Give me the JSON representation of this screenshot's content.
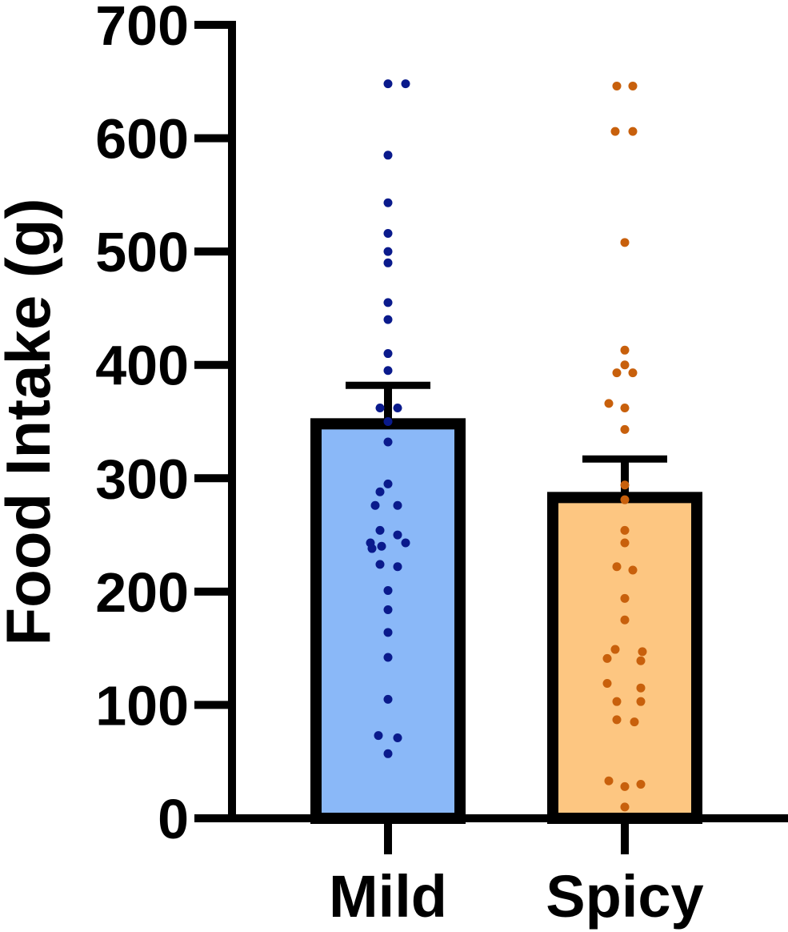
{
  "chart_data": {
    "type": "bar",
    "title": "",
    "xlabel": "",
    "ylabel": "Food Intake (g)",
    "ylim": [
      0,
      700
    ],
    "yticks": [
      0,
      100,
      200,
      300,
      400,
      500,
      600,
      700
    ],
    "categories": [
      "Mild",
      "Spicy"
    ],
    "values": [
      348,
      283
    ],
    "error_upper": [
      382,
      317
    ],
    "colors": {
      "bar_fill": [
        "#8ab8f8",
        "#fdc681"
      ],
      "points": [
        "#0a1a8c",
        "#c8600c"
      ],
      "outline": "#000000"
    },
    "points": [
      [
        648,
        648,
        585,
        543,
        516,
        500,
        490,
        455,
        440,
        410,
        395,
        362,
        362,
        350,
        332,
        295,
        288,
        276,
        276,
        254,
        250,
        243,
        243,
        240,
        238,
        224,
        222,
        201,
        184,
        164,
        142,
        105,
        73,
        71,
        57
      ],
      [
        646,
        646,
        606,
        606,
        508,
        413,
        400,
        393,
        393,
        366,
        362,
        343,
        294,
        281,
        254,
        243,
        222,
        219,
        194,
        175,
        149,
        147,
        141,
        139,
        119,
        115,
        103,
        103,
        87,
        85,
        33,
        30,
        28,
        10
      ]
    ]
  }
}
